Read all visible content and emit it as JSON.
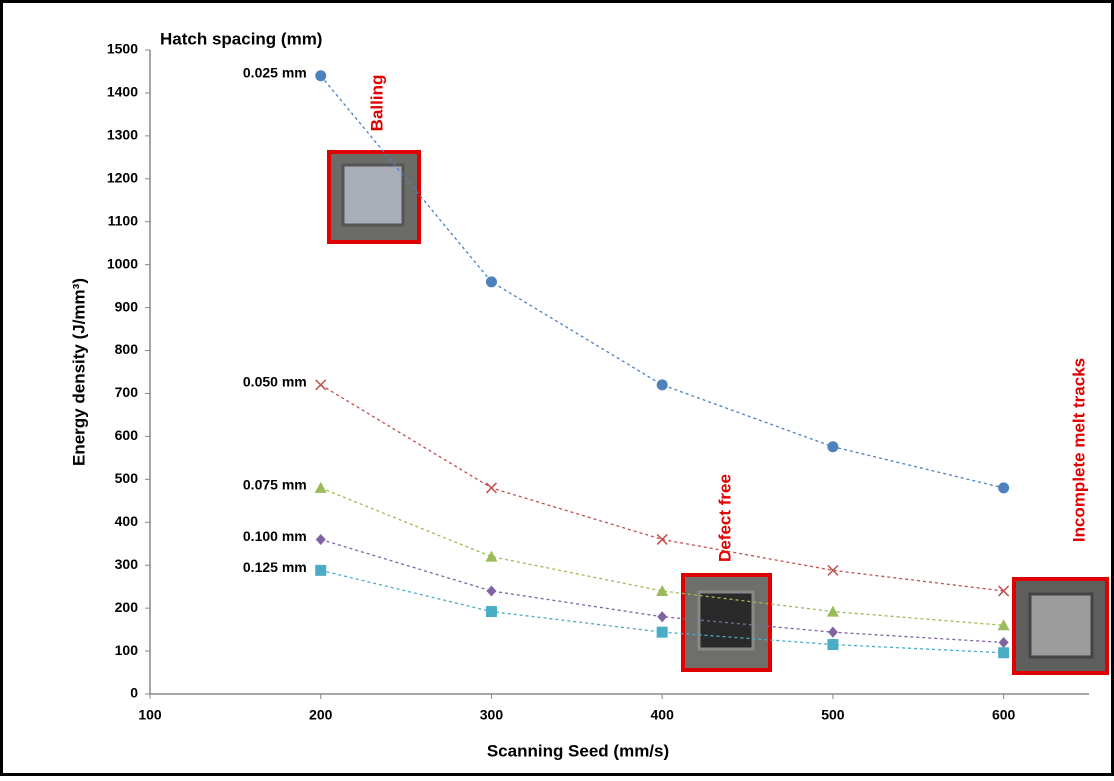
{
  "chart_data": {
    "type": "line",
    "y_label": "Energy density (J/mm³)",
    "x_label": "Scanning Seed (mm/s)",
    "legend_title": "Hatch spacing (mm)",
    "x": [
      200,
      300,
      400,
      500,
      600
    ],
    "xlim": [
      100,
      650
    ],
    "xticks": [
      100,
      200,
      300,
      400,
      500,
      600
    ],
    "ylim": [
      0,
      1500
    ],
    "yticks": [
      0,
      100,
      200,
      300,
      400,
      500,
      600,
      700,
      800,
      900,
      1000,
      1100,
      1200,
      1300,
      1400,
      1500
    ],
    "series": [
      {
        "name": "0.025 mm",
        "color": "#4f81bd",
        "marker": "circle",
        "values": [
          1440,
          960,
          720,
          576,
          480
        ]
      },
      {
        "name": "0.050 mm",
        "color": "#c0504d",
        "marker": "x",
        "values": [
          720,
          480,
          360,
          288,
          240
        ]
      },
      {
        "name": "0.075 mm",
        "color": "#9bbb59",
        "marker": "triangle",
        "values": [
          480,
          320,
          240,
          192,
          160
        ]
      },
      {
        "name": "0.100 mm",
        "color": "#8064a2",
        "marker": "diamond",
        "values": [
          360,
          240,
          180,
          144,
          120
        ]
      },
      {
        "name": "0.125 mm",
        "color": "#4bacc6",
        "marker": "square",
        "values": [
          288,
          192,
          144,
          115.2,
          96
        ]
      }
    ],
    "annotations": [
      "Balling",
      "Defect free",
      "Incomplete melt tracks"
    ]
  }
}
